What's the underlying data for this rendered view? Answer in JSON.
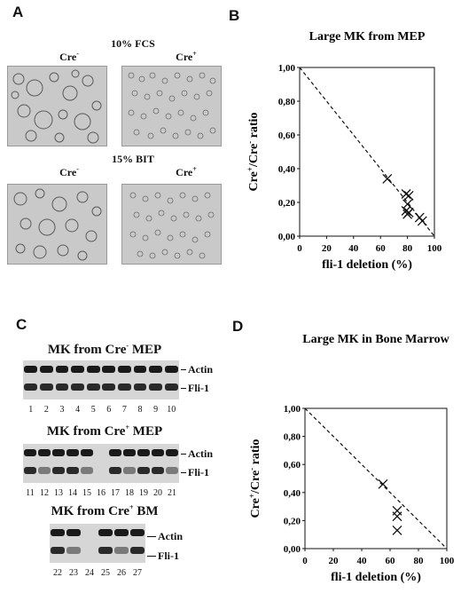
{
  "panel_a": {
    "letter": "A",
    "conditions": [
      {
        "label": "10% FCS",
        "left": "Cre",
        "left_sup": "-",
        "right": "Cre",
        "right_sup": "+"
      },
      {
        "label": "15% BIT",
        "left": "Cre",
        "left_sup": "-",
        "right": "Cre",
        "right_sup": "+"
      }
    ]
  },
  "panel_b": {
    "letter": "B"
  },
  "panel_c": {
    "letter": "C",
    "blots": [
      {
        "title_pre": "MK from Cre",
        "title_sup": "-",
        "title_post": " MEP",
        "band_labels": [
          "Actin",
          "Fli-1"
        ],
        "lanes": [
          "1",
          "2",
          "3",
          "4",
          "5",
          "6",
          "7",
          "8",
          "9",
          "10"
        ]
      },
      {
        "title_pre": "MK from Cre",
        "title_sup": "+",
        "title_post": " MEP",
        "band_labels": [
          "Actin",
          "Fli-1"
        ],
        "lanes": [
          "11",
          "12",
          "13",
          "14",
          "15",
          "16",
          "17",
          "18",
          "19",
          "20",
          "21"
        ]
      },
      {
        "title_pre": "MK from Cre",
        "title_sup": "+",
        "title_post": " BM",
        "band_labels": [
          "Actin",
          "Fli-1"
        ],
        "lanes": [
          "22",
          "23",
          "24",
          "25",
          "26",
          "27"
        ]
      }
    ]
  },
  "panel_d": {
    "letter": "D"
  },
  "chart_data": [
    {
      "type": "scatter",
      "title": "Large MK from MEP",
      "xlabel": "fli-1 deletion (%)",
      "ylabel_pre": "Cre",
      "ylabel_sup1": "+",
      "ylabel_mid": "/Cre",
      "ylabel_sup2": "-",
      "ylabel_post": " ratio",
      "xlim": [
        0,
        100
      ],
      "ylim": [
        0,
        1
      ],
      "x_ticks": [
        "0",
        "20",
        "40",
        "60",
        "80",
        "100"
      ],
      "y_ticks": [
        "0,00",
        "0,20",
        "0,40",
        "0,60",
        "0,80",
        "1,00"
      ],
      "points": [
        {
          "x": 65,
          "y": 0.34
        },
        {
          "x": 79,
          "y": 0.25
        },
        {
          "x": 81,
          "y": 0.24
        },
        {
          "x": 80,
          "y": 0.19
        },
        {
          "x": 79,
          "y": 0.15
        },
        {
          "x": 80,
          "y": 0.13
        },
        {
          "x": 81,
          "y": 0.14
        },
        {
          "x": 89,
          "y": 0.11
        },
        {
          "x": 91,
          "y": 0.09
        }
      ],
      "reference_line": {
        "from": [
          0,
          1
        ],
        "to": [
          100,
          0
        ],
        "style": "dashed"
      },
      "marker": "x"
    },
    {
      "type": "scatter",
      "title": "Large MK in Bone Marrow",
      "xlabel": "fli-1 deletion (%)",
      "ylabel_pre": "Cre",
      "ylabel_sup1": "+",
      "ylabel_mid": "/Cre",
      "ylabel_sup2": "-",
      "ylabel_post": " ratio",
      "xlim": [
        0,
        100
      ],
      "ylim": [
        0,
        1
      ],
      "x_ticks": [
        "0",
        "20",
        "40",
        "60",
        "80",
        "100"
      ],
      "y_ticks": [
        "0,00",
        "0,20",
        "0,40",
        "0,60",
        "0,80",
        "1,00"
      ],
      "points": [
        {
          "x": 55,
          "y": 0.46
        },
        {
          "x": 65,
          "y": 0.27
        },
        {
          "x": 65,
          "y": 0.23
        },
        {
          "x": 65,
          "y": 0.13
        }
      ],
      "reference_line": {
        "from": [
          0,
          1
        ],
        "to": [
          100,
          0
        ],
        "style": "dashed"
      },
      "marker": "x"
    }
  ]
}
